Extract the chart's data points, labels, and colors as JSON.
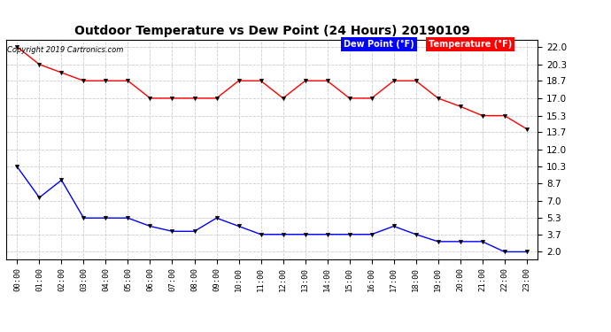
{
  "title": "Outdoor Temperature vs Dew Point (24 Hours) 20190109",
  "copyright": "Copyright 2019 Cartronics.com",
  "x_labels": [
    "00:00",
    "01:00",
    "02:00",
    "03:00",
    "04:00",
    "05:00",
    "06:00",
    "07:00",
    "08:00",
    "09:00",
    "10:00",
    "11:00",
    "12:00",
    "13:00",
    "14:00",
    "15:00",
    "16:00",
    "17:00",
    "18:00",
    "19:00",
    "20:00",
    "21:00",
    "22:00",
    "23:00"
  ],
  "temperature": [
    22.0,
    20.3,
    19.5,
    18.7,
    18.7,
    18.7,
    17.0,
    17.0,
    17.0,
    17.0,
    18.7,
    18.7,
    17.0,
    18.7,
    18.7,
    17.0,
    17.0,
    18.7,
    18.7,
    17.0,
    16.2,
    15.3,
    15.3,
    14.0
  ],
  "dew_point": [
    10.3,
    7.3,
    9.0,
    5.3,
    5.3,
    5.3,
    4.5,
    4.0,
    4.0,
    5.3,
    4.5,
    3.7,
    3.7,
    3.7,
    3.7,
    3.7,
    3.7,
    4.5,
    3.7,
    3.0,
    3.0,
    3.0,
    2.0,
    2.0
  ],
  "temp_color": "#ff0000",
  "dew_color": "#0000ff",
  "bg_color": "#ffffff",
  "grid_color": "#cccccc",
  "y_ticks": [
    2.0,
    3.7,
    5.3,
    7.0,
    8.7,
    10.3,
    12.0,
    13.7,
    15.3,
    17.0,
    18.7,
    20.3,
    22.0
  ],
  "ylim": [
    1.3,
    22.7
  ],
  "legend_dew_bg": "#0000ff",
  "legend_temp_bg": "#ff0000",
  "legend_text_color": "#ffffff",
  "figsize": [
    6.9,
    3.75
  ],
  "dpi": 100
}
